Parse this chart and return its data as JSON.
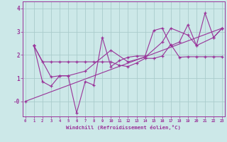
{
  "xlabel": "Windchill (Refroidissement éolien,°C)",
  "background_color": "#cce8e8",
  "grid_color": "#aacccc",
  "line_color": "#993399",
  "text_color": "#993399",
  "xlim": [
    -0.3,
    23.3
  ],
  "ylim": [
    -0.65,
    4.3
  ],
  "xticks": [
    0,
    1,
    2,
    3,
    4,
    5,
    6,
    7,
    8,
    9,
    10,
    11,
    12,
    13,
    14,
    15,
    16,
    17,
    18,
    19,
    20,
    21,
    22,
    23
  ],
  "yticks": [
    0,
    1,
    2,
    3,
    4
  ],
  "ytick_labels": [
    "-0",
    "1",
    "2",
    "3",
    "4"
  ],
  "series": [
    {
      "x": [
        1,
        2,
        3,
        4,
        5,
        6,
        7,
        8,
        9,
        10,
        11,
        12,
        13,
        14,
        15,
        16,
        17,
        18,
        19,
        20,
        21,
        22,
        23
      ],
      "y": [
        2.4,
        1.7,
        1.7,
        1.7,
        1.7,
        1.7,
        1.7,
        1.7,
        1.7,
        1.7,
        1.55,
        1.5,
        1.65,
        1.85,
        1.85,
        1.95,
        2.45,
        1.9,
        1.92,
        1.92,
        1.92,
        1.92,
        1.92
      ]
    },
    {
      "x": [
        1,
        2,
        3,
        4,
        5,
        6,
        7,
        8,
        9,
        10,
        11,
        12,
        13,
        14,
        15,
        16,
        17,
        18,
        19,
        20,
        21,
        22,
        23
      ],
      "y": [
        2.4,
        0.85,
        0.65,
        1.1,
        1.1,
        -0.5,
        0.85,
        0.7,
        2.75,
        1.5,
        1.75,
        1.9,
        1.95,
        1.95,
        3.05,
        3.15,
        2.4,
        2.55,
        3.3,
        2.4,
        3.8,
        2.75,
        3.15
      ]
    },
    {
      "x": [
        1,
        3,
        4,
        5,
        7,
        10,
        12,
        14,
        16,
        17,
        19,
        20,
        22,
        23
      ],
      "y": [
        2.4,
        1.05,
        1.1,
        1.1,
        1.3,
        2.2,
        1.7,
        1.9,
        2.55,
        3.15,
        2.85,
        2.4,
        2.75,
        3.15
      ]
    },
    {
      "x": [
        0,
        23
      ],
      "y": [
        0.0,
        3.15
      ]
    }
  ]
}
